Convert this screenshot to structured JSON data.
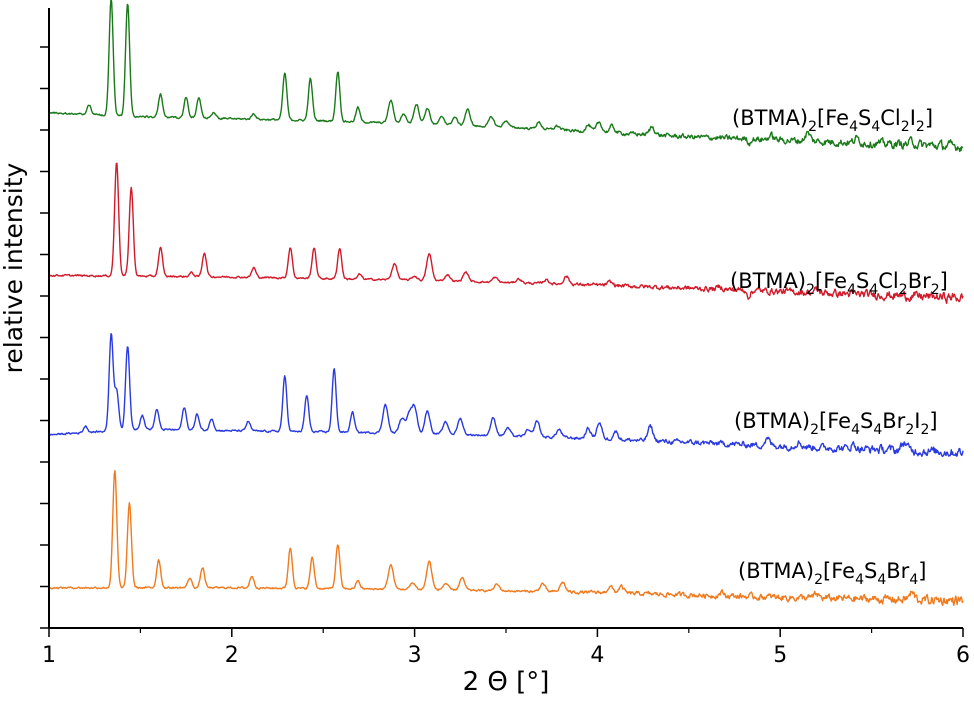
{
  "chart_data": {
    "type": "line",
    "title": "",
    "xlabel": "2 Θ [°]",
    "ylabel": "relative intensity",
    "xlim": [
      1,
      6
    ],
    "xticks": [
      "1",
      "2",
      "3",
      "4",
      "5",
      "6"
    ],
    "grid": false,
    "legend": "none",
    "series": [
      {
        "name": "(BTMA)2[Fe4S4Cl2I2]",
        "label_parts": [
          {
            "t": "(BTMA)",
            "sub": false
          },
          {
            "t": "2",
            "sub": true
          },
          {
            "t": "[Fe",
            "sub": false
          },
          {
            "t": "4",
            "sub": true
          },
          {
            "t": "S",
            "sub": false
          },
          {
            "t": "4",
            "sub": true
          },
          {
            "t": "Cl",
            "sub": false
          },
          {
            "t": "2",
            "sub": true
          },
          {
            "t": "I",
            "sub": false
          },
          {
            "t": "2",
            "sub": true
          },
          {
            "t": "]",
            "sub": false
          }
        ],
        "color": "#1a7a1a",
        "baseline": [
          [
            1.0,
            5.9
          ],
          [
            1.5,
            5.85
          ],
          [
            2.5,
            5.8
          ],
          [
            3.5,
            5.72
          ],
          [
            4.5,
            5.6
          ],
          [
            5.5,
            5.52
          ],
          [
            6.0,
            5.48
          ]
        ],
        "peaks": [
          [
            1.22,
            0.12
          ],
          [
            1.34,
            1.45
          ],
          [
            1.43,
            1.4
          ],
          [
            1.61,
            0.28
          ],
          [
            1.75,
            0.25
          ],
          [
            1.82,
            0.25
          ],
          [
            1.9,
            0.08
          ],
          [
            2.12,
            0.07
          ],
          [
            2.29,
            0.58
          ],
          [
            2.43,
            0.52
          ],
          [
            2.58,
            0.62
          ],
          [
            2.69,
            0.18
          ],
          [
            2.87,
            0.28
          ],
          [
            2.94,
            0.12
          ],
          [
            3.01,
            0.25
          ],
          [
            3.07,
            0.2
          ],
          [
            3.15,
            0.1
          ],
          [
            3.22,
            0.1
          ],
          [
            3.29,
            0.2
          ],
          [
            3.42,
            0.12
          ],
          [
            3.5,
            0.08
          ],
          [
            3.68,
            0.08
          ],
          [
            3.78,
            0.05
          ],
          [
            3.95,
            0.08
          ],
          [
            4.01,
            0.12
          ],
          [
            4.08,
            0.08
          ],
          [
            4.3,
            0.1
          ],
          [
            4.95,
            0.05
          ],
          [
            5.15,
            0.1
          ],
          [
            5.42,
            0.05
          ],
          [
            5.72,
            0.04
          ]
        ],
        "dips": [
          [
            4.83,
            0.06
          ]
        ]
      },
      {
        "name": "(BTMA)2[Fe4S4Cl2Br2]",
        "label_parts": [
          {
            "t": "(BTMA)",
            "sub": false
          },
          {
            "t": "2",
            "sub": true
          },
          {
            "t": "[Fe",
            "sub": false
          },
          {
            "t": "4",
            "sub": true
          },
          {
            "t": "S",
            "sub": false
          },
          {
            "t": "4",
            "sub": true
          },
          {
            "t": "Cl",
            "sub": false
          },
          {
            "t": "2",
            "sub": true
          },
          {
            "t": "Br",
            "sub": false
          },
          {
            "t": "2",
            "sub": true
          },
          {
            "t": "]",
            "sub": false
          }
        ],
        "color": "#d11a2a",
        "baseline": [
          [
            1.0,
            3.88
          ],
          [
            2.0,
            3.86
          ],
          [
            3.0,
            3.82
          ],
          [
            4.0,
            3.76
          ],
          [
            5.0,
            3.68
          ],
          [
            6.0,
            3.6
          ]
        ],
        "peaks": [
          [
            1.37,
            1.42
          ],
          [
            1.45,
            1.1
          ],
          [
            1.61,
            0.35
          ],
          [
            1.78,
            0.05
          ],
          [
            1.85,
            0.3
          ],
          [
            2.12,
            0.12
          ],
          [
            2.32,
            0.38
          ],
          [
            2.45,
            0.38
          ],
          [
            2.59,
            0.38
          ],
          [
            2.7,
            0.06
          ],
          [
            2.89,
            0.2
          ],
          [
            3.0,
            0.05
          ],
          [
            3.08,
            0.33
          ],
          [
            3.18,
            0.08
          ],
          [
            3.28,
            0.12
          ],
          [
            3.44,
            0.06
          ],
          [
            3.57,
            0.05
          ],
          [
            3.72,
            0.05
          ],
          [
            3.83,
            0.1
          ],
          [
            4.07,
            0.04
          ],
          [
            4.67,
            0.03
          ],
          [
            5.2,
            0.03
          ]
        ],
        "dips": [
          [
            4.83,
            0.12
          ]
        ]
      },
      {
        "name": "(BTMA)2[Fe4S4Br2I2]",
        "label_parts": [
          {
            "t": "(BTMA)",
            "sub": false
          },
          {
            "t": "2",
            "sub": true
          },
          {
            "t": "[Fe",
            "sub": false
          },
          {
            "t": "4",
            "sub": true
          },
          {
            "t": "S",
            "sub": false
          },
          {
            "t": "4",
            "sub": true
          },
          {
            "t": "Br",
            "sub": false
          },
          {
            "t": "2",
            "sub": true
          },
          {
            "t": "I",
            "sub": false
          },
          {
            "t": "2",
            "sub": true
          },
          {
            "t": "]",
            "sub": false
          }
        ],
        "color": "#2a3adf",
        "baseline": [
          [
            1.0,
            1.9
          ],
          [
            1.5,
            1.97
          ],
          [
            2.0,
            1.95
          ],
          [
            3.0,
            1.92
          ],
          [
            4.0,
            1.85
          ],
          [
            5.0,
            1.76
          ],
          [
            6.0,
            1.68
          ]
        ],
        "peaks": [
          [
            1.2,
            0.08
          ],
          [
            1.34,
            1.2
          ],
          [
            1.37,
            0.5
          ],
          [
            1.43,
            1.05
          ],
          [
            1.51,
            0.18
          ],
          [
            1.59,
            0.25
          ],
          [
            1.74,
            0.28
          ],
          [
            1.81,
            0.2
          ],
          [
            1.89,
            0.15
          ],
          [
            2.09,
            0.12
          ],
          [
            2.29,
            0.68
          ],
          [
            2.41,
            0.45
          ],
          [
            2.56,
            0.78
          ],
          [
            2.66,
            0.25
          ],
          [
            2.84,
            0.35
          ],
          [
            2.93,
            0.18
          ],
          [
            2.97,
            0.25
          ],
          [
            3.0,
            0.32
          ],
          [
            3.07,
            0.28
          ],
          [
            3.17,
            0.15
          ],
          [
            3.25,
            0.2
          ],
          [
            3.43,
            0.22
          ],
          [
            3.51,
            0.1
          ],
          [
            3.62,
            0.08
          ],
          [
            3.67,
            0.2
          ],
          [
            3.79,
            0.1
          ],
          [
            3.95,
            0.12
          ],
          [
            4.01,
            0.2
          ],
          [
            4.1,
            0.1
          ],
          [
            4.29,
            0.18
          ],
          [
            4.93,
            0.08
          ],
          [
            5.1,
            0.06
          ],
          [
            5.4,
            0.05
          ],
          [
            5.68,
            0.1
          ]
        ],
        "dips": []
      },
      {
        "name": "(BTMA)2[Fe4S4Br4]",
        "label_parts": [
          {
            "t": "(BTMA)",
            "sub": false
          },
          {
            "t": "2",
            "sub": true
          },
          {
            "t": "[Fe",
            "sub": false
          },
          {
            "t": "4",
            "sub": true
          },
          {
            "t": "S",
            "sub": false
          },
          {
            "t": "4",
            "sub": true
          },
          {
            "t": "Br",
            "sub": false
          },
          {
            "t": "4",
            "sub": true
          },
          {
            "t": "]",
            "sub": false
          }
        ],
        "color": "#f07a1e",
        "baseline": [
          [
            1.0,
            0.0
          ],
          [
            2.0,
            0.0
          ],
          [
            3.0,
            -0.02
          ],
          [
            4.0,
            -0.06
          ],
          [
            5.0,
            -0.12
          ],
          [
            6.0,
            -0.16
          ]
        ],
        "peaks": [
          [
            1.36,
            1.45
          ],
          [
            1.44,
            1.05
          ],
          [
            1.6,
            0.35
          ],
          [
            1.77,
            0.12
          ],
          [
            1.84,
            0.25
          ],
          [
            2.11,
            0.15
          ],
          [
            2.32,
            0.5
          ],
          [
            2.44,
            0.38
          ],
          [
            2.58,
            0.55
          ],
          [
            2.69,
            0.1
          ],
          [
            2.87,
            0.3
          ],
          [
            2.99,
            0.08
          ],
          [
            3.08,
            0.35
          ],
          [
            3.17,
            0.08
          ],
          [
            3.26,
            0.15
          ],
          [
            3.45,
            0.08
          ],
          [
            3.7,
            0.1
          ],
          [
            3.81,
            0.12
          ],
          [
            4.07,
            0.08
          ],
          [
            4.13,
            0.08
          ],
          [
            4.68,
            0.04
          ],
          [
            5.2,
            0.04
          ],
          [
            5.72,
            0.08
          ]
        ],
        "dips": []
      }
    ]
  }
}
